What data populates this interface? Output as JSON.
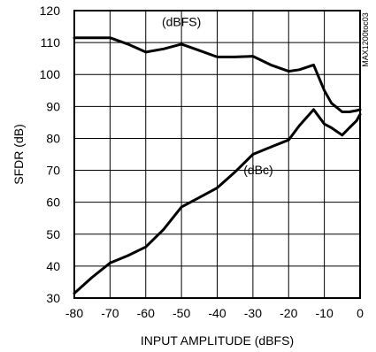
{
  "chart_data": {
    "type": "line",
    "title": "",
    "xlabel": "INPUT AMPLITUDE (dBFS)",
    "ylabel": "SFDR (dB)",
    "xlim": [
      -80,
      0
    ],
    "ylim": [
      30,
      120
    ],
    "xticks": [
      -80,
      -70,
      -60,
      -50,
      -40,
      -30,
      -20,
      -10,
      0
    ],
    "yticks": [
      30,
      40,
      50,
      60,
      70,
      80,
      90,
      100,
      110,
      120
    ],
    "grid": true,
    "series": [
      {
        "name": "(dBFS)",
        "x": [
          -80,
          -75,
          -70,
          -65,
          -60,
          -55,
          -50,
          -45,
          -40,
          -35,
          -30,
          -25,
          -20,
          -17,
          -13,
          -10,
          -8,
          -5,
          -3,
          -1,
          0
        ],
        "y": [
          111.5,
          111.5,
          111.5,
          109.5,
          107,
          108,
          109.5,
          107.5,
          105.5,
          105.5,
          105.7,
          103,
          101,
          101.5,
          103,
          95,
          91,
          88.3,
          88.3,
          88.7,
          89
        ]
      },
      {
        "name": "(dBc)",
        "x": [
          -80,
          -75,
          -70,
          -65,
          -60,
          -55,
          -50,
          -45,
          -40,
          -35,
          -30,
          -25,
          -20,
          -17,
          -13,
          -10,
          -8,
          -5,
          -3,
          -1,
          0
        ],
        "y": [
          31.5,
          36.5,
          41,
          43.3,
          46,
          51.5,
          58.5,
          61.5,
          64.5,
          69.5,
          75,
          77.3,
          79.5,
          84,
          89,
          84.5,
          83.3,
          81,
          83.3,
          85.5,
          87.5
        ]
      }
    ],
    "annotations": [
      {
        "text": "(dBFS)",
        "x": -50,
        "y": 115.2
      },
      {
        "text": "(dBc)",
        "x": -28.5,
        "y": 68.8
      }
    ],
    "side_note": "MAX1200toc03"
  }
}
